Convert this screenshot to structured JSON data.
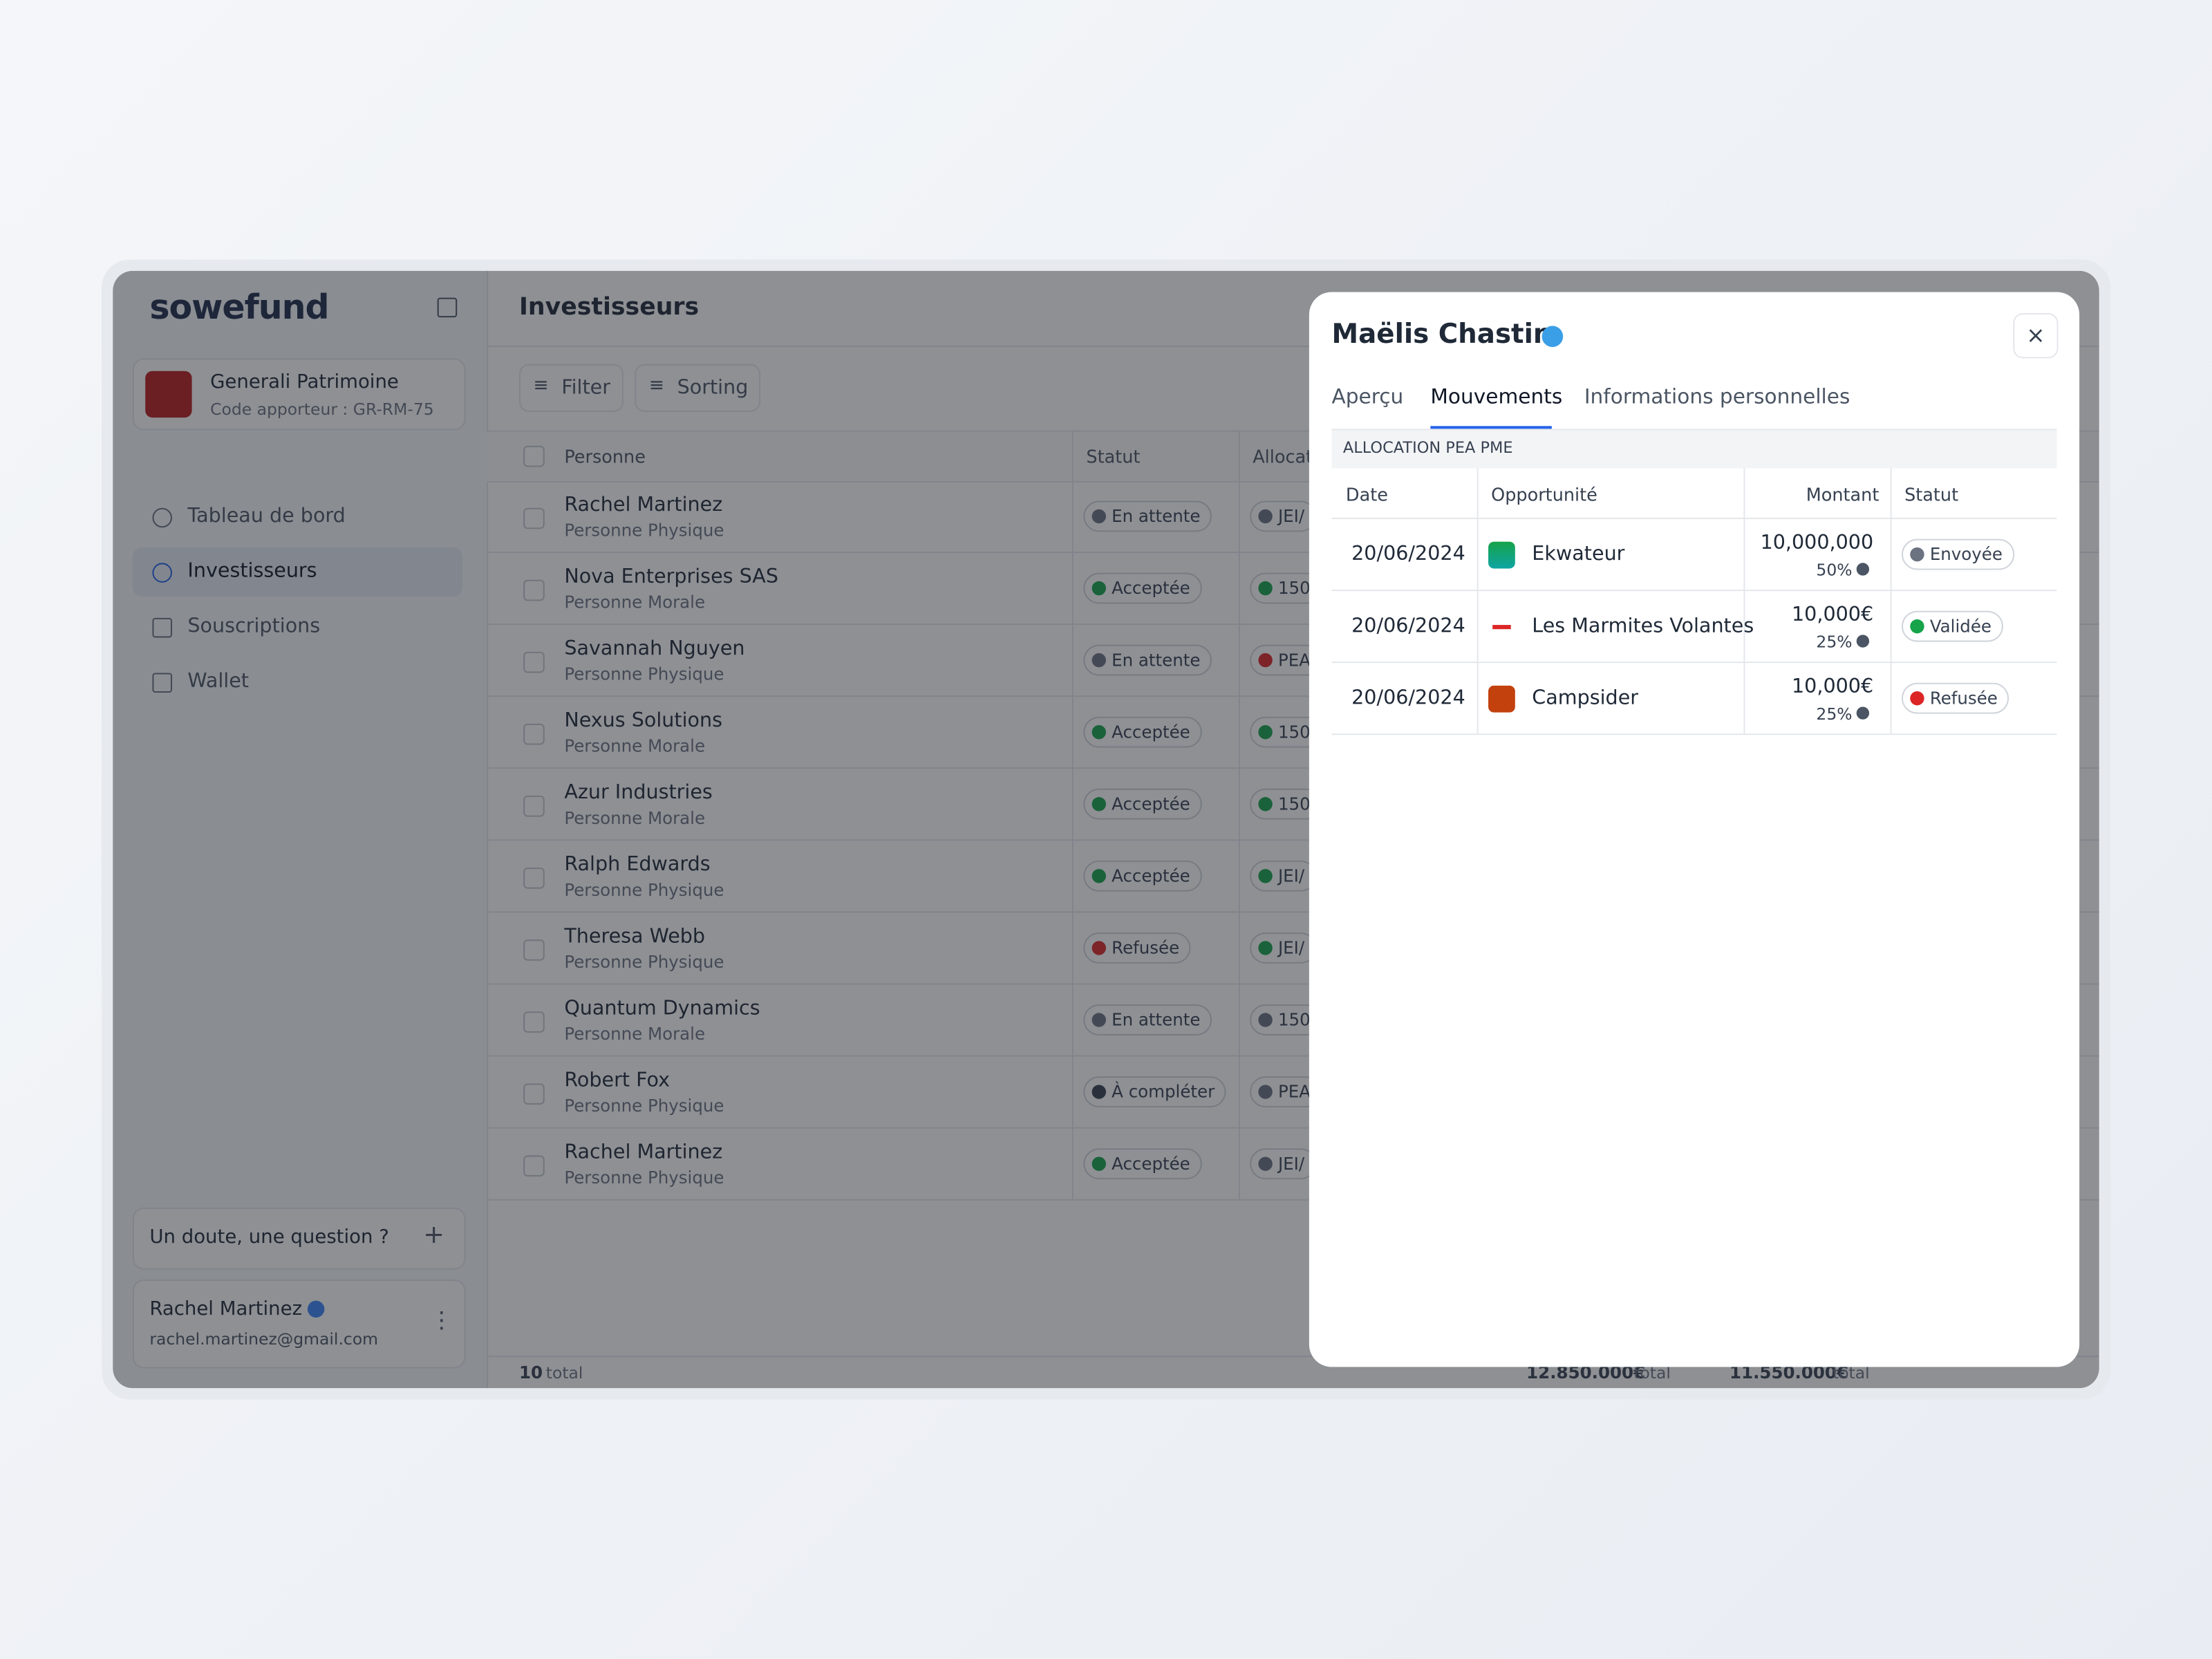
{
  "sidebar": {
    "logo": "sowefund",
    "org": {
      "name": "Generali Patrimoine",
      "code": "Code apporteur : GR-RM-75"
    },
    "nav": [
      "Tableau de bord",
      "Investisseurs",
      "Souscriptions",
      "Wallet"
    ],
    "help": "Un doute, une question ?",
    "user": {
      "name": "Rachel Martinez",
      "email": "rachel.martinez@gmail.com"
    }
  },
  "main": {
    "title": "Investisseurs",
    "toolbar": [
      "Filter",
      "Sorting"
    ],
    "table": {
      "headers": [
        "Personne",
        "Statut",
        "Allocation"
      ],
      "rows": [
        {
          "name": "Rachel Martinez",
          "type": "Personne Physique",
          "status": "En attente",
          "status_color": "#6b7280",
          "allocation": "JEI/",
          "allocation_color": "#6b7280"
        },
        {
          "name": "Nova Enterprises SAS",
          "type": "Personne Morale",
          "status": "Acceptée",
          "status_color": "#16a34a",
          "allocation": "150",
          "allocation_color": "#16a34a"
        },
        {
          "name": "Savannah Nguyen",
          "type": "Personne Physique",
          "status": "En attente",
          "status_color": "#6b7280",
          "allocation": "PEA",
          "allocation_color": "#dc2626"
        },
        {
          "name": "Nexus Solutions",
          "type": "Personne Morale",
          "status": "Acceptée",
          "status_color": "#16a34a",
          "allocation": "150",
          "allocation_color": "#16a34a"
        },
        {
          "name": "Azur Industries",
          "type": "Personne Morale",
          "status": "Acceptée",
          "status_color": "#16a34a",
          "allocation": "150",
          "allocation_color": "#16a34a"
        },
        {
          "name": "Ralph Edwards",
          "type": "Personne Physique",
          "status": "Acceptée",
          "status_color": "#16a34a",
          "allocation": "JEI/",
          "allocation_color": "#16a34a"
        },
        {
          "name": "Theresa Webb",
          "type": "Personne Physique",
          "status": "Refusée",
          "status_color": "#dc2626",
          "allocation": "JEI/",
          "allocation_color": "#16a34a"
        },
        {
          "name": "Quantum Dynamics",
          "type": "Personne Morale",
          "status": "En attente",
          "status_color": "#6b7280",
          "allocation": "150",
          "allocation_color": "#6b7280"
        },
        {
          "name": "Robert Fox",
          "type": "Personne Physique",
          "status": "À compléter",
          "status_color": "#374151",
          "allocation": "PEA",
          "allocation_color": "#6b7280"
        },
        {
          "name": "Rachel Martinez",
          "type": "Personne Physique",
          "status": "Acceptée",
          "status_color": "#16a34a",
          "allocation": "JEI/",
          "allocation_color": "#6b7280"
        }
      ],
      "footer": {
        "count": "10",
        "count_label": "total",
        "sum1": "12.850.000€",
        "sum1_label": "total",
        "sum2": "11.550.000€",
        "sum2_label": "total"
      }
    }
  },
  "modal": {
    "title": "Maëlis Chastin",
    "tabs": [
      "Aperçu",
      "Mouvements",
      "Informations personnelles"
    ],
    "section": "ALLOCATION PEA PME",
    "headers": [
      "Date",
      "Opportunité",
      "Montant",
      "Statut"
    ],
    "rows": [
      {
        "date": "20/06/2024",
        "opportunity": "Ekwateur",
        "amount": "10,000,000",
        "share": "50%",
        "status": "Envoyée",
        "status_color": "#6b7280"
      },
      {
        "date": "20/06/2024",
        "opportunity": "Les Marmites Volantes",
        "amount": "10,000€",
        "share": "25%",
        "status": "Validée",
        "status_color": "#16a34a"
      },
      {
        "date": "20/06/2024",
        "opportunity": "Campsider",
        "amount": "10,000€",
        "share": "25%",
        "status": "Refusée",
        "status_color": "#dc2626"
      }
    ]
  }
}
